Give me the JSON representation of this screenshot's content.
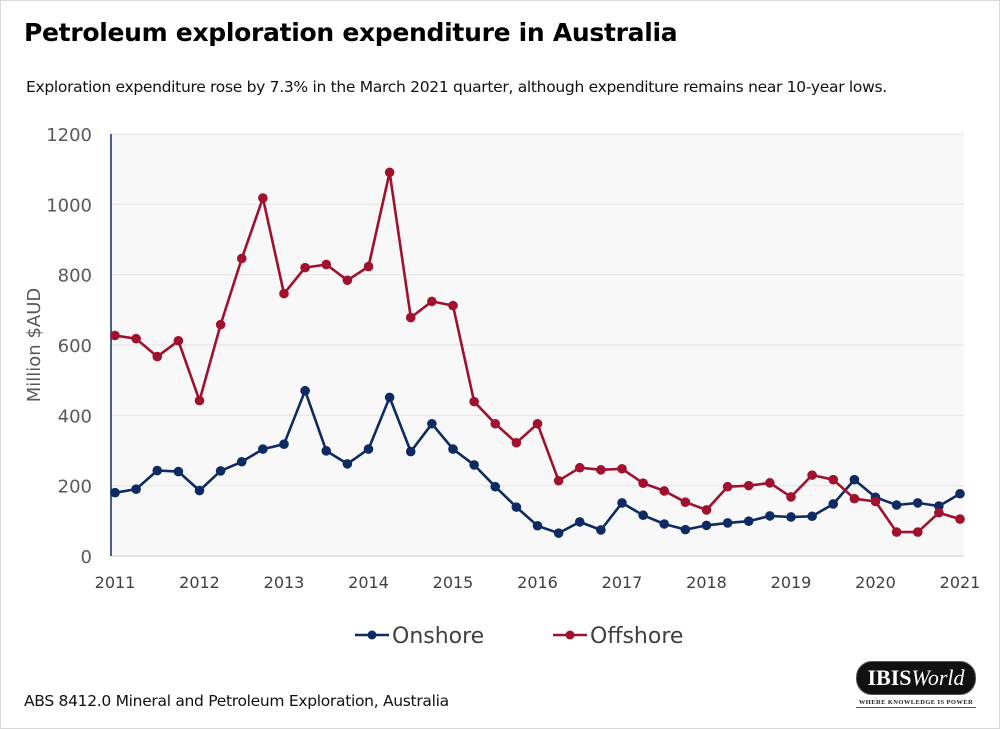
{
  "header": {
    "title": "Petroleum exploration expenditure in Australia",
    "subtitle": "Exploration expenditure rose by 7.3% in the March 2021 quarter, although expenditure remains near 10-year lows."
  },
  "footer": {
    "source": "ABS 8412.0 Mineral and Petroleum Exploration, Australia",
    "logo": {
      "brand_bold": "IBIS",
      "brand_italic": "World",
      "tagline": "WHERE KNOWLEDGE IS POWER"
    }
  },
  "colors": {
    "onshore": "#0e2a63",
    "offshore": "#a0112e",
    "grid": "#e6e6e6",
    "plot_bg": "#f8f8f8",
    "axis": "#0e2a63"
  },
  "chart_data": {
    "type": "line",
    "title": "Petroleum exploration expenditure in Australia",
    "xlabel": "",
    "ylabel": "Million $AUD",
    "ylim": [
      0,
      1200
    ],
    "yticks": [
      0,
      200,
      400,
      600,
      800,
      1000,
      1200
    ],
    "xticks": [
      "2011",
      "2012",
      "2013",
      "2014",
      "2015",
      "2016",
      "2017",
      "2018",
      "2019",
      "2020",
      "2021"
    ],
    "grid": true,
    "legend_position": "bottom-center",
    "x": [
      "2011Q1",
      "2011Q2",
      "2011Q3",
      "2011Q4",
      "2012Q1",
      "2012Q2",
      "2012Q3",
      "2012Q4",
      "2013Q1",
      "2013Q2",
      "2013Q3",
      "2013Q4",
      "2014Q1",
      "2014Q2",
      "2014Q3",
      "2014Q4",
      "2015Q1",
      "2015Q2",
      "2015Q3",
      "2015Q4",
      "2016Q1",
      "2016Q2",
      "2016Q3",
      "2016Q4",
      "2017Q1",
      "2017Q2",
      "2017Q3",
      "2017Q4",
      "2018Q1",
      "2018Q2",
      "2018Q3",
      "2018Q4",
      "2019Q1",
      "2019Q2",
      "2019Q3",
      "2019Q4",
      "2020Q1",
      "2020Q2",
      "2020Q3",
      "2020Q4",
      "2021Q1"
    ],
    "series": [
      {
        "name": "Onshore",
        "color": "#0e2a63",
        "values": [
          180,
          190,
          243,
          240,
          186,
          242,
          268,
          304,
          318,
          470,
          299,
          262,
          304,
          451,
          297,
          376,
          304,
          259,
          197,
          139,
          86,
          65,
          97,
          74,
          151,
          116,
          91,
          75,
          87,
          94,
          99,
          114,
          111,
          113,
          148,
          217,
          167,
          145,
          151,
          142,
          177
        ]
      },
      {
        "name": "Offshore",
        "color": "#a0112e",
        "values": [
          627,
          618,
          567,
          612,
          442,
          658,
          846,
          1018,
          746,
          820,
          829,
          784,
          823,
          1091,
          678,
          724,
          712,
          439,
          376,
          322,
          376,
          214,
          251,
          245,
          248,
          207,
          185,
          153,
          131,
          197,
          200,
          208,
          168,
          230,
          217,
          163,
          155,
          68,
          68,
          123,
          105
        ]
      }
    ]
  }
}
